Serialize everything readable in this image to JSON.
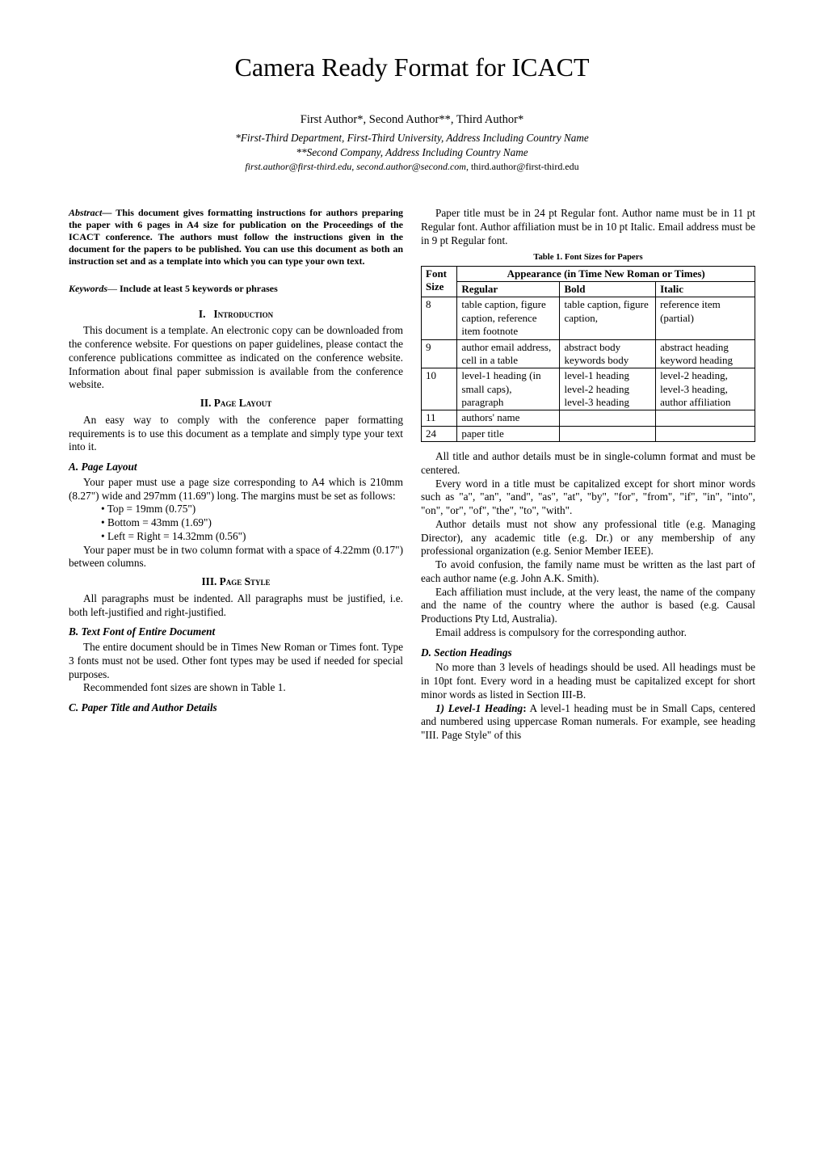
{
  "title": "Camera Ready Format for ICACT",
  "authors_line": "First Author*, Second Author**, Third Author*",
  "affiliation1": "*First-Third Department, First-Third University, Address Including Country Name",
  "affiliation2": "**Second Company, Address Including Country Name",
  "emails": {
    "e1": "first.author@first-third.edu",
    "e2": "second.author@second.com",
    "e3": "third.author@first-third.edu",
    "sep": ", "
  },
  "abstract": {
    "lead": "Abstract",
    "dash": "— ",
    "body": "This document gives formatting instructions for authors preparing the paper with 6 pages in A4 size for publication on the Proceedings of the ICACT conference.  The authors must follow the instructions given in the document for the papers to be published.  You can use this document as both an instruction set and as a template into which you can type your own text."
  },
  "keywords": {
    "lead": "Keywords",
    "dash": "— ",
    "body": "Include at least 5 keywords or phrases"
  },
  "sections": {
    "s1": {
      "num": "I.",
      "title": "Introduction"
    },
    "s2": {
      "num": "II.",
      "title": "Page Layout"
    },
    "s3": {
      "num": "III.",
      "title": "Page Style"
    }
  },
  "intro_p1": "This document is a template.  An electronic copy can be downloaded from the conference website.  For questions on paper guidelines, please contact the conference publications committee as indicated on the conference website.  Information about final paper submission is available from the conference website.",
  "layout_p1": "An easy way to comply with the conference paper formatting requirements is to use this document as a template and simply type your text into it.",
  "subA": {
    "label": "A.  Page Layout"
  },
  "subA_p1": "Your paper must use a page size corresponding to A4 which is 210mm (8.27\") wide and 297mm (11.69\") long.  The margins must be set as follows:",
  "margins": {
    "b1": "• Top = 19mm (0.75\")",
    "b2": "• Bottom = 43mm (1.69\")",
    "b3": "• Left = Right = 14.32mm (0.56\")"
  },
  "subA_p2": "Your paper must be in two column format with a space of 4.22mm (0.17\") between columns.",
  "style_p1": "All paragraphs must be indented.  All paragraphs must be justified, i.e. both left-justified and right-justified.",
  "subB": {
    "label": "B.  Text Font of Entire Document"
  },
  "subB_p1": "The entire document should be in Times New Roman or Times font.  Type 3 fonts must not be used.  Other font types may be used if needed for special purposes.",
  "subB_p2": "Recommended font sizes are shown in Table 1.",
  "subC": {
    "label": "C.  Paper Title and Author Details"
  },
  "subC_p1": "Paper title must be in 24 pt Regular font.  Author name must be in 11 pt Regular font.  Author affiliation must be in 10 pt Italic.  Email address must be in 9 pt Regular font.",
  "table1": {
    "caption": "Table 1.    Font Sizes for Papers",
    "h_font": "Font Size",
    "h_appearance": "Appearance (in Time New Roman or Times)",
    "h_regular": "Regular",
    "h_bold": "Bold",
    "h_italic": "Italic",
    "rows": [
      {
        "size": "8",
        "regular": "table caption, figure caption, reference item footnote",
        "bold": "table caption, figure caption,",
        "italic": "reference item (partial)"
      },
      {
        "size": "9",
        "regular": "author email address, cell in a table",
        "bold": "abstract body keywords body",
        "italic": "abstract heading keyword heading"
      },
      {
        "size": "10",
        "regular": "level-1 heading (in small caps), paragraph",
        "bold": "level-1 heading level-2 heading level-3 heading",
        "italic": "level-2 heading, level-3 heading, author affiliation"
      },
      {
        "size": "11",
        "regular": "authors' name",
        "bold": "",
        "italic": ""
      },
      {
        "size": "24",
        "regular": "paper title",
        "bold": "",
        "italic": ""
      }
    ]
  },
  "subC_p2": "All title and author details must be in single-column format and must be centered.",
  "subC_p3": "Every word in a title must be capitalized except for short minor words such as \"a\", \"an\", \"and\", \"as\", \"at\", \"by\", \"for\", \"from\", \"if\", \"in\", \"into\", \"on\", \"or\", \"of\", \"the\", \"to\", \"with\".",
  "subC_p4": "Author details must not show any professional title (e.g. Managing Director), any academic title (e.g. Dr.) or any membership of any professional organization (e.g. Senior Member IEEE).",
  "subC_p5": "To avoid confusion, the family name must be written as the last part of each author name (e.g. John A.K. Smith).",
  "subC_p6": "Each affiliation must include, at the very least, the name of the company and the name of the country where the author is based (e.g. Causal Productions Pty Ltd, Australia).",
  "subC_p7": "Email address is compulsory for the corresponding author.",
  "subD": {
    "label": "D.  Section Headings"
  },
  "subD_p1": "No more than 3 levels of headings should be used.  All headings must be in 10pt font.  Every word in a heading must be capitalized except for short minor words as listed in Section III-B.",
  "level1": {
    "lead": "1) Level-1 Heading",
    "colon": ":",
    "body": "  A level-1 heading must be in Small Caps, centered and numbered using uppercase Roman numerals.  For example, see heading \"III. Page Style\" of this"
  },
  "colors": {
    "text": "#000000",
    "background": "#ffffff",
    "border": "#000000"
  },
  "typography": {
    "body_pt": 10,
    "title_pt": 24,
    "author_pt": 11,
    "affiliation_pt": 10,
    "email_pt": 9,
    "abstract_pt": 9,
    "caption_pt": 8
  }
}
